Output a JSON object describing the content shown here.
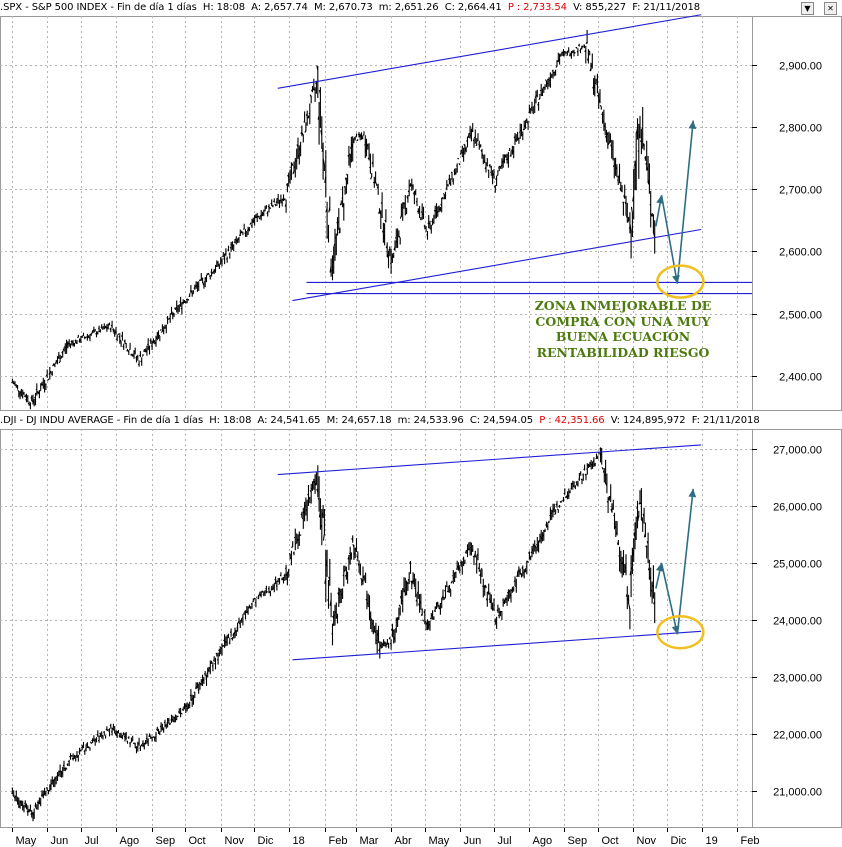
{
  "colors": {
    "trend": "#1f1fd6",
    "arrow": "#2e6e82",
    "ellipse": "#f0c020",
    "grid": "#b4b4b4",
    "price": "#000000",
    "ohlc_red": "#e00000",
    "annotation": "#4d7a0c"
  },
  "window_controls": [
    "minimize-icon",
    "close-icon"
  ],
  "panel_top": {
    "symbol": ".SPX",
    "name": "S&P 500 INDEX",
    "timeframe": "Fin de día 1 días",
    "h": "H: 18:08",
    "a": "A: 2,657.74",
    "m": "M: 2,670.73",
    "min": "m: 2,651.26",
    "c": "C: 2,664.41",
    "p": "P : 2,733.54",
    "v": "V: 855,227",
    "f": "F: 21/11/2018",
    "y_ticks": [
      "2,900.00",
      "2,800.00",
      "2,700.00",
      "2,600.00",
      "2,500.00",
      "2,400.00"
    ],
    "annotation": [
      "ZONA INMEJORABLE DE",
      "COMPRA CON UNA MUY",
      "BUENA ECUACIÓN",
      "RENTABILIDAD RIESGO"
    ]
  },
  "panel_bottom": {
    "symbol": ".DJI",
    "name": "DJ INDU AVERAGE",
    "timeframe": "Fin de día 1 días",
    "h": "H: 18:08",
    "a": "A: 24,541.65",
    "m": "M: 24,657.18",
    "min": "m: 24,533.96",
    "c": "C: 24,594.05",
    "p": "P : 42,351.66",
    "v": "V: 124,895,972",
    "f": "F: 21/11/2018",
    "y_ticks": [
      "27,000.00",
      "26,000.00",
      "25,000.00",
      "24,000.00",
      "23,000.00",
      "22,000.00",
      "21,000.00"
    ]
  },
  "x_axis": {
    "labels": [
      "May",
      "Jun",
      "Jul",
      "Ago",
      "Sep",
      "Oct",
      "Nov",
      "Dic",
      "18",
      "Feb",
      "Mar",
      "Abr",
      "May",
      "Jun",
      "Jul",
      "Ago",
      "Sep",
      "Oct",
      "Nov",
      "Dic",
      "19",
      "Feb"
    ]
  },
  "chart_data": [
    {
      "type": "line",
      "series": [
        {
          "name": ".SPX - S&P 500 INDEX",
          "dates": [
            "2017-05-01",
            "2017-05-18",
            "2017-06-19",
            "2017-07-27",
            "2017-08-21",
            "2017-09-29",
            "2017-10-31",
            "2017-11-30",
            "2017-12-29",
            "2018-01-26",
            "2018-02-08",
            "2018-02-27",
            "2018-03-09",
            "2018-04-02",
            "2018-04-18",
            "2018-05-03",
            "2018-06-12",
            "2018-07-02",
            "2018-08-29",
            "2018-09-20",
            "2018-10-29",
            "2018-11-07",
            "2018-11-20",
            "2018-11-21"
          ],
          "values": [
            2390,
            2357,
            2450,
            2480,
            2425,
            2519,
            2579,
            2648,
            2690,
            2873,
            2581,
            2780,
            2786,
            2582,
            2710,
            2630,
            2790,
            2713,
            2914,
            2931,
            2641,
            2813,
            2641,
            2664
          ]
        }
      ],
      "projection": {
        "dates": [
          "2018-11-21",
          "2018-11-26",
          "2018-12-10",
          "2018-12-24"
        ],
        "values": [
          2640,
          2690,
          2548,
          2810
        ]
      },
      "channel": [
        {
          "dates": [
            "2018-01-26",
            "2018-12-31"
          ],
          "values": [
            2873,
            2980
          ]
        },
        {
          "dates": [
            "2018-02-08",
            "2018-12-31"
          ],
          "values": [
            2532,
            2635
          ]
        }
      ],
      "support_levels": [
        2550,
        2532
      ],
      "ylim": [
        2345,
        2978
      ],
      "ylabel": ""
    },
    {
      "type": "line",
      "series": [
        {
          "name": ".DJI - DJ INDU AVERAGE",
          "dates": [
            "2017-05-01",
            "2017-05-18",
            "2017-06-19",
            "2017-07-27",
            "2017-08-21",
            "2017-09-29",
            "2017-10-31",
            "2017-11-30",
            "2017-12-29",
            "2018-01-26",
            "2018-02-08",
            "2018-02-27",
            "2018-03-23",
            "2018-04-02",
            "2018-04-18",
            "2018-05-03",
            "2018-06-12",
            "2018-07-02",
            "2018-08-29",
            "2018-10-03",
            "2018-10-29",
            "2018-11-07",
            "2018-11-20",
            "2018-11-21"
          ],
          "values": [
            20950,
            20610,
            21500,
            22100,
            21780,
            22400,
            23400,
            24300,
            24800,
            26600,
            23860,
            25400,
            23500,
            23650,
            24850,
            23900,
            25300,
            24000,
            26100,
            26900,
            24400,
            26200,
            24400,
            24594
          ]
        }
      ],
      "projection": {
        "dates": [
          "2018-11-21",
          "2018-11-26",
          "2018-12-10",
          "2018-12-24"
        ],
        "values": [
          24550,
          25000,
          23750,
          26300
        ]
      },
      "channel": [
        {
          "dates": [
            "2018-01-26",
            "2018-12-31"
          ],
          "values": [
            26600,
            27070
          ]
        },
        {
          "dates": [
            "2018-02-08",
            "2018-12-31"
          ],
          "values": [
            23350,
            23800
          ]
        }
      ],
      "ylim": [
        20350,
        27350
      ],
      "ylabel": ""
    }
  ]
}
